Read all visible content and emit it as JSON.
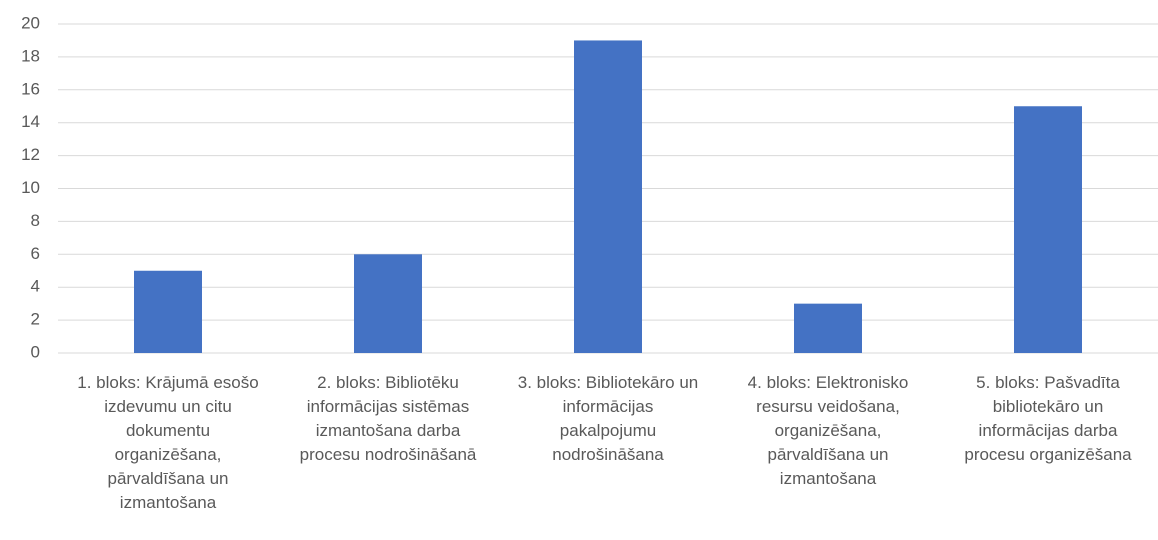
{
  "chart_data": {
    "type": "bar",
    "categories": [
      "1. bloks: Krājumā esošo izdevumu un citu dokumentu organizēšana, pārvaldīšana un izmantošana",
      "2. bloks: Bibliotēku informācijas sistēmas izmantošana darba procesu nodrošināšanā",
      "3. bloks: Bibliotekāro un informācijas pakalpojumu nodrošināšana",
      "4. bloks: Elektronisko resursu veidošana, organizēšana, pārvaldīšana un izmantošana",
      "5. bloks: Pašvadīta bibliotekāro un informācijas darba procesu organizēšana"
    ],
    "values": [
      5,
      6,
      19,
      3,
      15
    ],
    "color": "#4472c4",
    "ylim": [
      0,
      20
    ],
    "yticks": [
      0,
      2,
      4,
      6,
      8,
      10,
      12,
      14,
      16,
      18,
      20
    ],
    "grid": true
  }
}
